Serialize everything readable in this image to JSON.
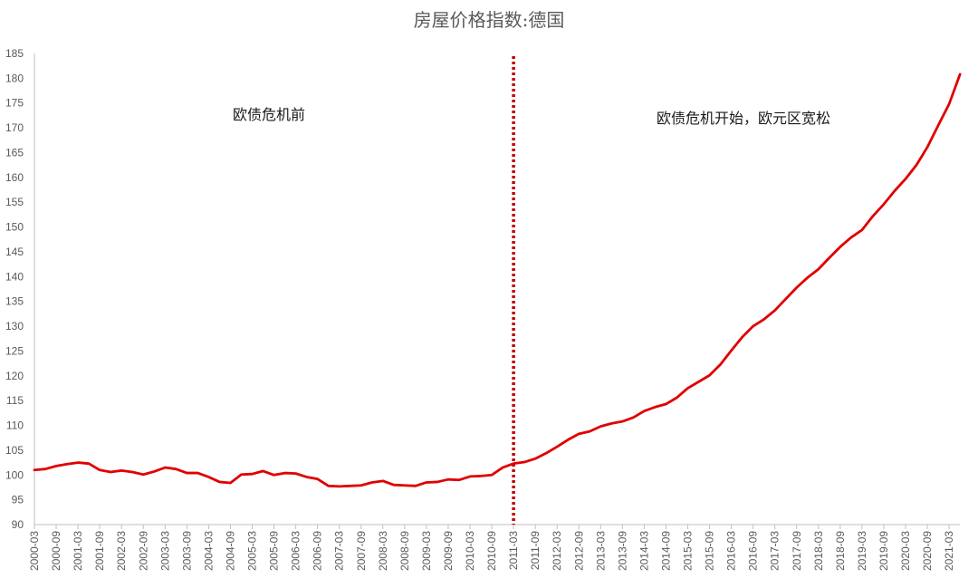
{
  "chart_data": {
    "type": "line",
    "title": "房屋价格指数:德国",
    "xlabel": "",
    "ylabel": "",
    "ylim": [
      90,
      185
    ],
    "yticks": [
      90,
      95,
      100,
      105,
      110,
      115,
      120,
      125,
      130,
      135,
      140,
      145,
      150,
      155,
      160,
      165,
      170,
      175,
      180,
      185
    ],
    "grid": false,
    "legend": "none",
    "colors": {
      "line": "#e00000",
      "divider": "#c00000",
      "axis": "#bfbfbf",
      "text": "#595959"
    },
    "x_tick_labels": [
      "2000-03",
      "2000-09",
      "2001-03",
      "2001-09",
      "2002-03",
      "2002-09",
      "2003-03",
      "2003-09",
      "2004-03",
      "2004-09",
      "2005-03",
      "2005-09",
      "2006-03",
      "2006-09",
      "2007-03",
      "2007-09",
      "2008-03",
      "2008-09",
      "2009-03",
      "2009-09",
      "2010-03",
      "2010-09",
      "2011-03",
      "2011-09",
      "2012-03",
      "2012-09",
      "2013-03",
      "2013-09",
      "2014-03",
      "2014-09",
      "2015-03",
      "2015-09",
      "2016-03",
      "2016-09",
      "2017-03",
      "2017-09",
      "2018-03",
      "2018-09",
      "2019-03",
      "2019-09",
      "2020-03",
      "2020-09",
      "2021-03"
    ],
    "divider_x": "2011-03",
    "annotations": [
      "欧债危机前",
      "欧债危机开始，欧元区宽松"
    ],
    "series": [
      {
        "x": [
          "2000-03",
          "2000-06",
          "2000-09",
          "2000-12",
          "2001-03",
          "2001-06",
          "2001-09",
          "2001-12",
          "2002-03",
          "2002-06",
          "2002-09",
          "2002-12",
          "2003-03",
          "2003-06",
          "2003-09",
          "2003-12",
          "2004-03",
          "2004-06",
          "2004-09",
          "2004-12",
          "2005-03",
          "2005-06",
          "2005-09",
          "2005-12",
          "2006-03",
          "2006-06",
          "2006-09",
          "2006-12",
          "2007-03",
          "2007-06",
          "2007-09",
          "2007-12",
          "2008-03",
          "2008-06",
          "2008-09",
          "2008-12",
          "2009-03",
          "2009-06",
          "2009-09",
          "2009-12",
          "2010-03",
          "2010-06",
          "2010-09",
          "2010-12",
          "2011-03",
          "2011-06",
          "2011-09",
          "2011-12",
          "2012-03",
          "2012-06",
          "2012-09",
          "2012-12",
          "2013-03",
          "2013-06",
          "2013-09",
          "2013-12",
          "2014-03",
          "2014-06",
          "2014-09",
          "2014-12",
          "2015-03",
          "2015-06",
          "2015-09",
          "2015-12",
          "2016-03",
          "2016-06",
          "2016-09",
          "2016-12",
          "2017-03",
          "2017-06",
          "2017-09",
          "2017-12",
          "2018-03",
          "2018-06",
          "2018-09",
          "2018-12",
          "2019-03",
          "2019-06",
          "2019-09",
          "2019-12",
          "2020-03",
          "2020-06",
          "2020-09",
          "2020-12",
          "2021-03",
          "2021-06"
        ],
        "values": [
          101.0,
          101.2,
          101.8,
          102.2,
          102.5,
          102.3,
          101.0,
          100.6,
          100.9,
          100.6,
          100.1,
          100.7,
          101.5,
          101.2,
          100.4,
          100.4,
          99.6,
          98.6,
          98.4,
          100.1,
          100.2,
          100.8,
          100.0,
          100.4,
          100.3,
          99.6,
          99.2,
          97.8,
          97.7,
          97.8,
          97.9,
          98.5,
          98.8,
          98.0,
          97.9,
          97.8,
          98.5,
          98.6,
          99.1,
          99.0,
          99.7,
          99.8,
          100.0,
          101.5,
          102.3,
          102.6,
          103.3,
          104.4,
          105.7,
          107.1,
          108.3,
          108.8,
          109.8,
          110.4,
          110.8,
          111.6,
          112.9,
          113.7,
          114.3,
          115.6,
          117.5,
          118.8,
          120.1,
          122.3,
          125.1,
          127.8,
          130.0,
          131.4,
          133.2,
          135.5,
          137.8,
          139.8,
          141.5,
          143.8,
          146.0,
          147.9,
          149.4,
          152.2,
          154.6,
          157.3,
          159.7,
          162.5,
          166.1,
          170.5,
          174.8,
          180.8
        ]
      }
    ]
  }
}
